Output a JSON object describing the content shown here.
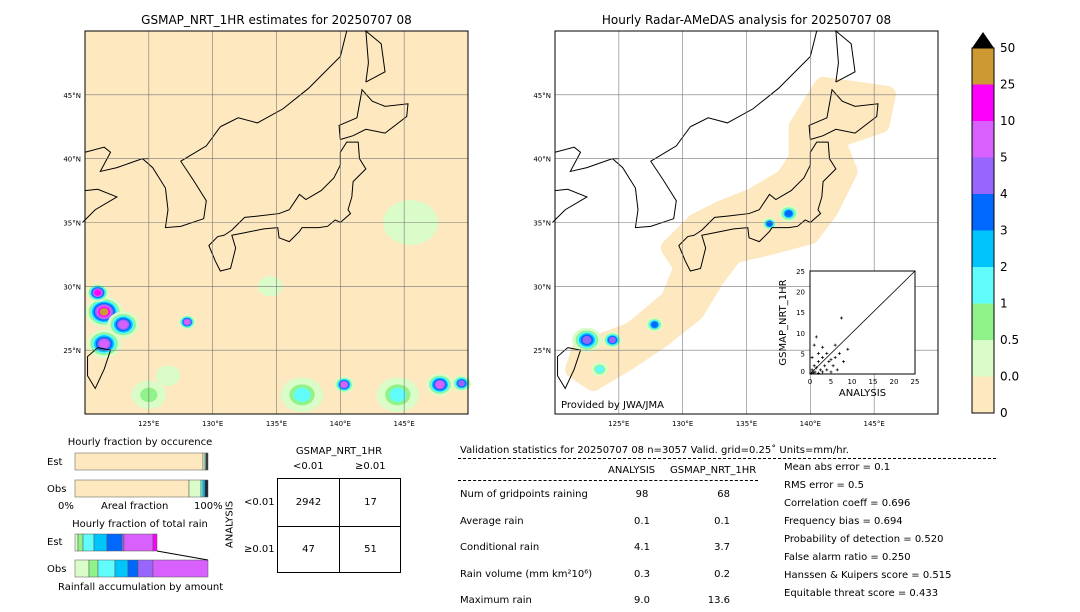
{
  "colors": {
    "land_bg": "#fde8c0",
    "levels": [
      "#fde8c0",
      "#d9fcc8",
      "#90f38a",
      "#60fcfc",
      "#00c4fc",
      "#0068fc",
      "#9866fc",
      "#d860fc",
      "#fc00fc",
      "#cc9933"
    ]
  },
  "chart_data": [
    {
      "type": "heatmap",
      "title": "GSMAP_NRT_1HR estimates for 20250707 08",
      "xlim": [
        120,
        150
      ],
      "ylim": [
        20,
        50
      ],
      "xticks": [
        "125°E",
        "130°E",
        "135°E",
        "140°E",
        "145°E"
      ],
      "yticks": [
        "45°N",
        "40°N",
        "35°N",
        "30°N",
        "25°N"
      ],
      "grid": true
    },
    {
      "type": "heatmap",
      "title": "Hourly Radar-AMeDAS analysis for 20250707 08",
      "xlim": [
        120,
        150
      ],
      "ylim": [
        20,
        50
      ],
      "xticks": [
        "125°E",
        "130°E",
        "135°E",
        "140°E",
        "145°E"
      ],
      "yticks": [
        "45°N",
        "40°N",
        "35°N",
        "30°N",
        "25°N"
      ],
      "grid": true,
      "annotation": "Provided by JWA/JMA"
    },
    {
      "type": "scatter",
      "xlabel": "ANALYSIS",
      "ylabel": "GSMAP_NRT_1HR",
      "xlim": [
        0,
        25
      ],
      "ylim": [
        0,
        25
      ],
      "ticks": [
        "0",
        "5",
        "10",
        "15",
        "20",
        "25"
      ],
      "points": [
        [
          0.3,
          0.2
        ],
        [
          0.5,
          1
        ],
        [
          0.8,
          0.3
        ],
        [
          1,
          2
        ],
        [
          1.2,
          0.5
        ],
        [
          1.5,
          1.5
        ],
        [
          2,
          0.2
        ],
        [
          2,
          3
        ],
        [
          2.5,
          1
        ],
        [
          3,
          4
        ],
        [
          3,
          0.5
        ],
        [
          3.5,
          2
        ],
        [
          4,
          1
        ],
        [
          4,
          5
        ],
        [
          4.5,
          3
        ],
        [
          5,
          0.5
        ],
        [
          5,
          3.5
        ],
        [
          5.5,
          2
        ],
        [
          6,
          4
        ],
        [
          6,
          7
        ],
        [
          6.5,
          1
        ],
        [
          7,
          5
        ],
        [
          7.5,
          13.6
        ],
        [
          8,
          3
        ],
        [
          9,
          6
        ],
        [
          1,
          7
        ],
        [
          2,
          5
        ],
        [
          0.5,
          4
        ],
        [
          1.5,
          9
        ],
        [
          3,
          6.5
        ]
      ]
    },
    {
      "type": "bar",
      "title": "Hourly fraction by occurence",
      "rows": [
        "Est",
        "Obs"
      ],
      "xlabel": "Areal fraction",
      "xticks": [
        "0%",
        "100%"
      ]
    },
    {
      "type": "bar",
      "title": "Hourly fraction of total rain",
      "rows": [
        "Est",
        "Obs"
      ],
      "xlabel": "Rainfall accumulation by amount"
    }
  ],
  "colorbar": {
    "labels": [
      "50",
      "25",
      "10",
      "5",
      "4",
      "3",
      "2",
      "1",
      "0.5",
      "0.01",
      "0"
    ]
  },
  "contingency": {
    "title": "GSMAP_NRT_1HR",
    "cols": [
      "<0.01",
      "≥0.01"
    ],
    "row_label": "ANALYSIS",
    "rows": [
      "<0.01",
      "≥0.01"
    ],
    "cells": [
      [
        "2942",
        "17"
      ],
      [
        "47",
        "51"
      ]
    ]
  },
  "stats": {
    "header": "Validation statistics for 20250707 08  n=3057 Valid. grid=0.25˚ Units=mm/hr.",
    "col1": "ANALYSIS",
    "col2": "GSMAP_NRT_1HR",
    "rows": [
      [
        "Num of gridpoints raining",
        "98",
        "68"
      ],
      [
        "Average rain",
        "0.1",
        "0.1"
      ],
      [
        "Conditional rain",
        "4.1",
        "3.7"
      ],
      [
        "Rain volume (mm km²10⁶)",
        "0.3",
        "0.2"
      ],
      [
        "Maximum rain",
        "9.0",
        "13.6"
      ]
    ],
    "scores": [
      "Mean abs error =    0.1",
      "RMS error =    0.5",
      "Correlation coeff =  0.696",
      "Frequency bias =  0.694",
      "Probability of detection =  0.520",
      "False alarm ratio =  0.250",
      "Hanssen & Kuipers score =  0.515",
      "Equitable threat score =  0.433"
    ]
  }
}
